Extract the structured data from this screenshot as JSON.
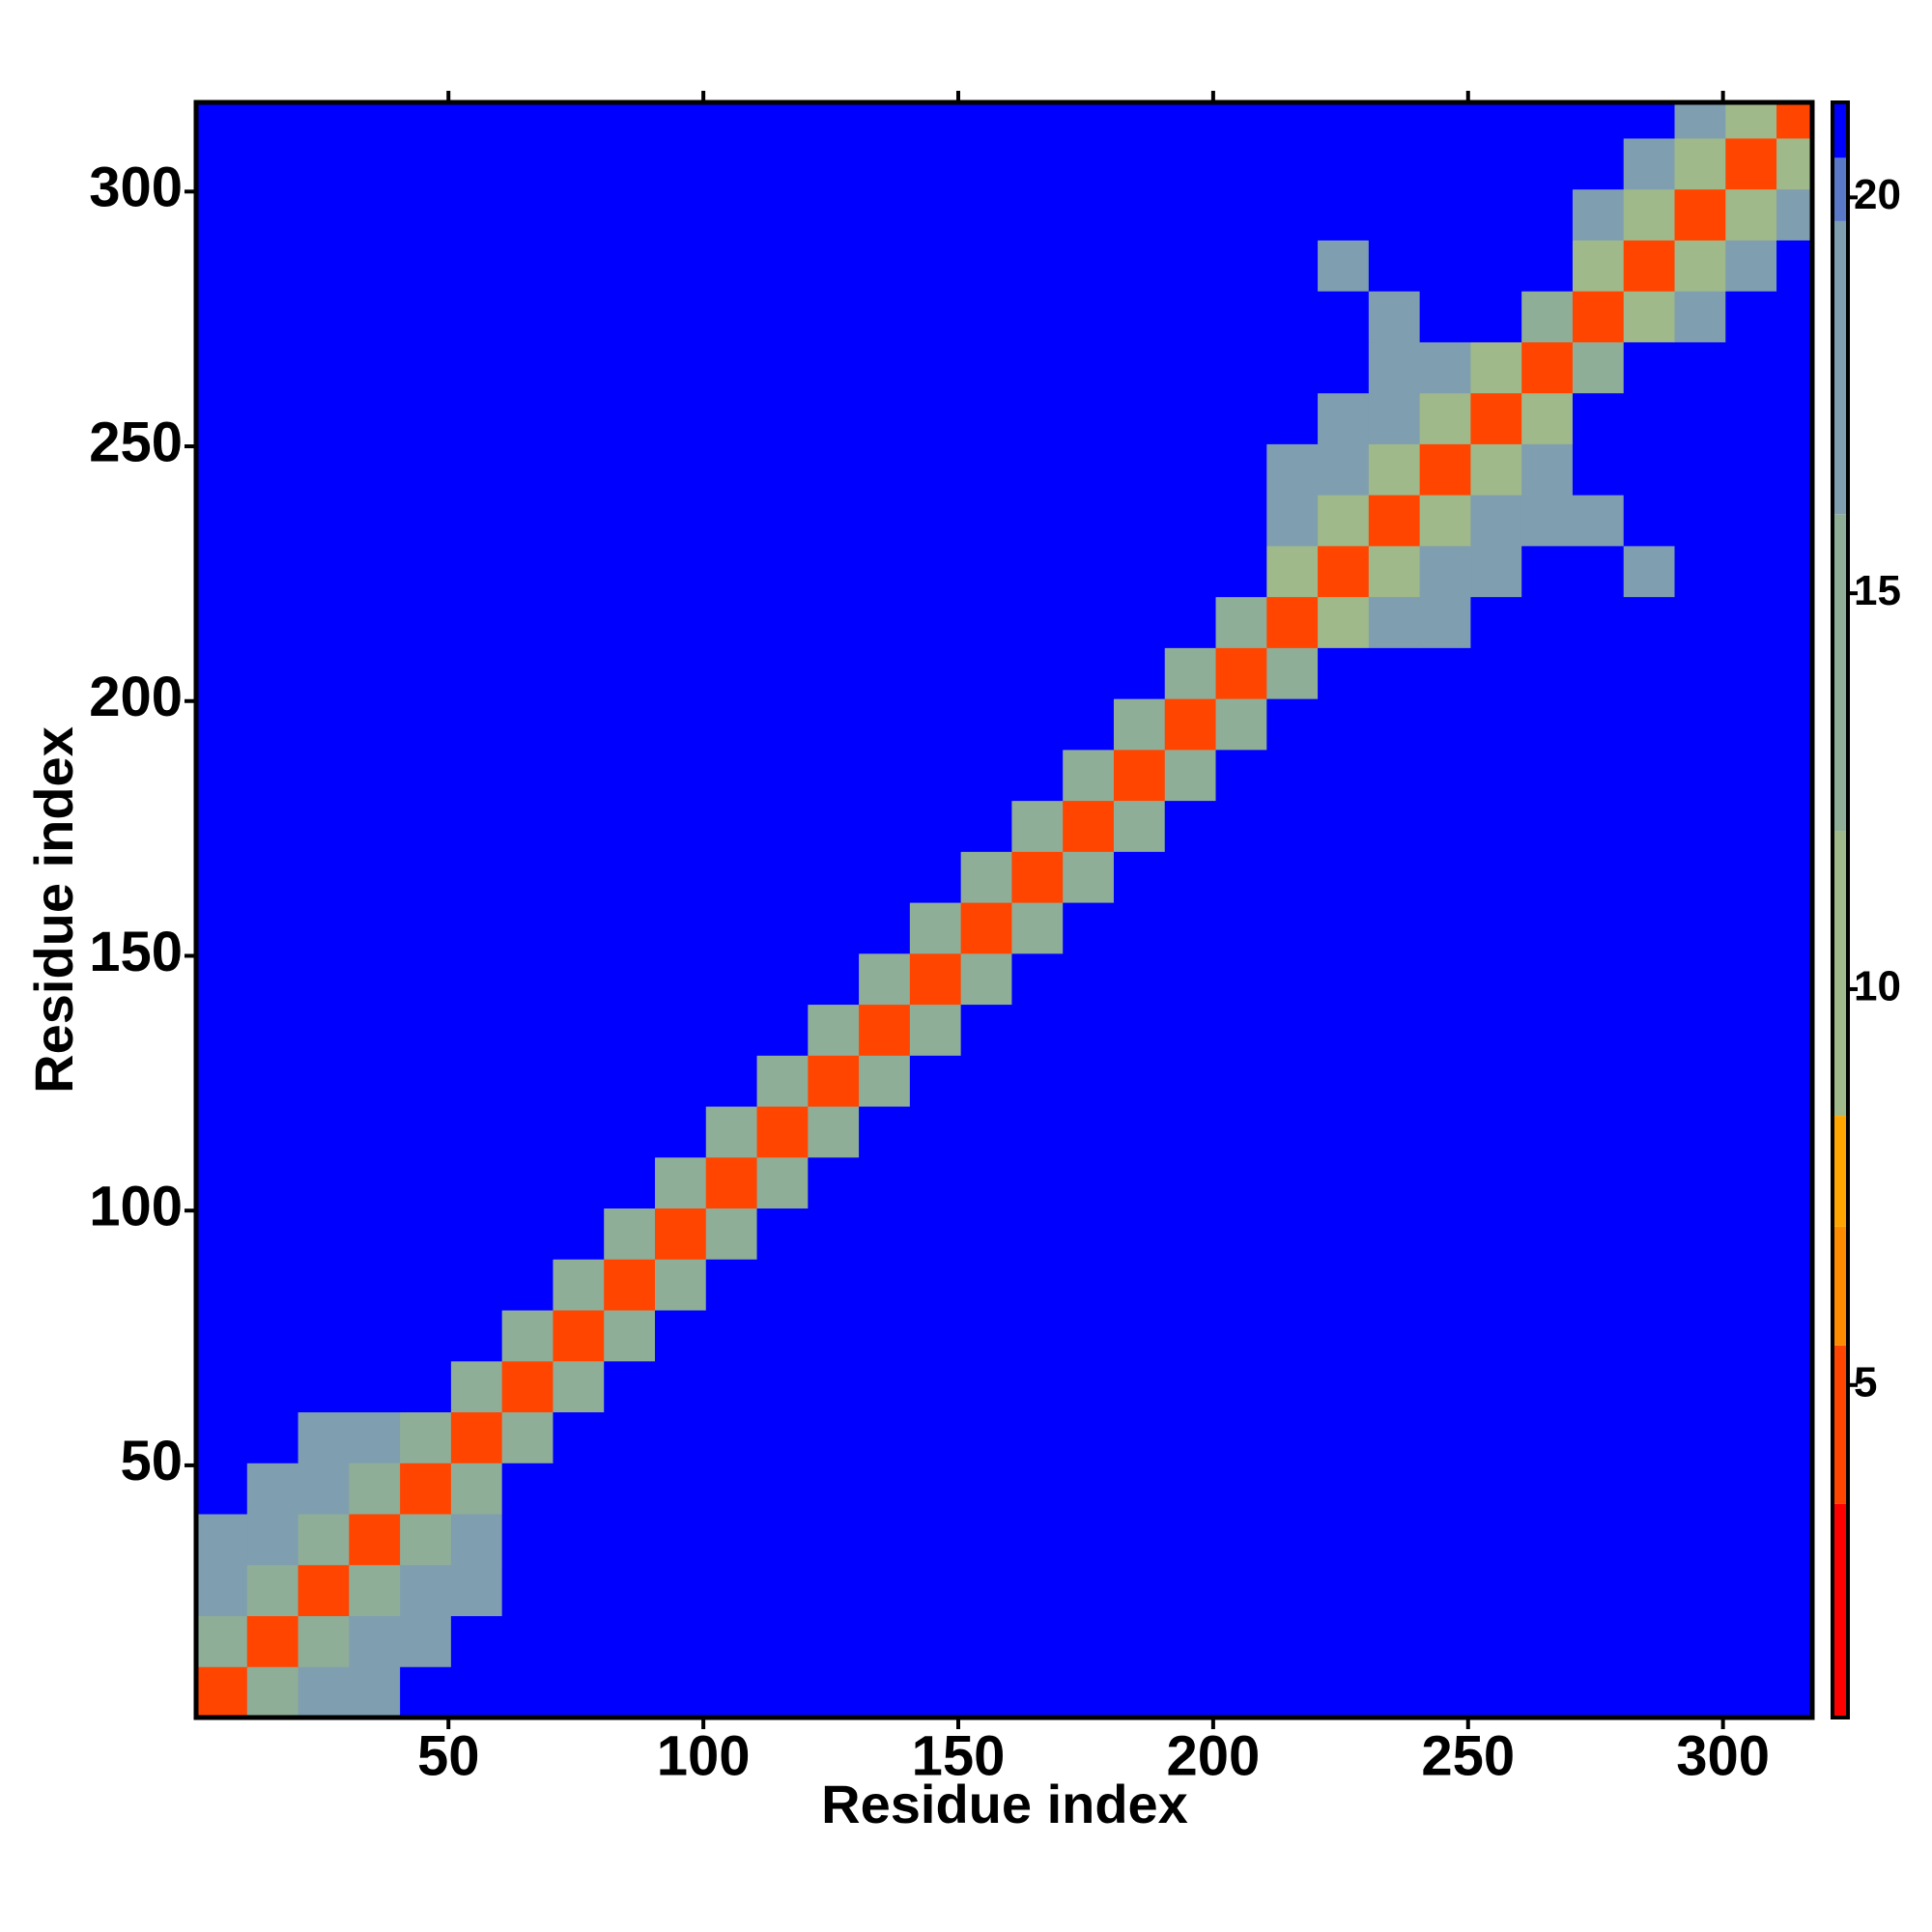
{
  "chart_data": {
    "type": "heatmap",
    "xlabel": "Residue index",
    "ylabel": "Residue index",
    "xlim": [
      0.5,
      317.5
    ],
    "ylim": [
      0.5,
      317.5
    ],
    "xticks": [
      50,
      100,
      150,
      200,
      250,
      300
    ],
    "yticks": [
      50,
      100,
      150,
      200,
      250,
      300
    ],
    "bins": [
      0.5,
      10.5,
      20.5,
      30.5,
      40.5,
      50.5,
      60.5,
      70.5,
      80.5,
      90.5,
      100.5,
      110.5,
      120.5,
      130.5,
      140.5,
      150.5,
      160.5,
      170.5,
      180.5,
      190.5,
      200.5,
      210.5,
      220.5,
      230.5,
      240.5,
      250.5,
      260.5,
      270.5,
      280.5,
      290.5,
      300.5,
      310.5,
      317.5
    ],
    "matrix": [
      [
        4,
        12,
        16,
        19,
        21,
        21,
        21,
        21,
        21,
        21,
        21,
        21,
        21,
        21,
        21,
        21,
        21,
        21,
        21,
        21,
        21,
        21,
        21,
        21,
        21,
        21,
        21,
        21,
        21,
        21,
        21,
        21
      ],
      [
        12,
        4,
        12,
        16,
        19,
        21,
        21,
        21,
        21,
        21,
        21,
        21,
        21,
        21,
        21,
        21,
        21,
        21,
        21,
        21,
        21,
        21,
        21,
        21,
        21,
        21,
        21,
        21,
        21,
        21,
        21,
        21
      ],
      [
        16,
        12,
        4,
        12,
        16,
        19,
        21,
        21,
        21,
        21,
        21,
        21,
        21,
        21,
        21,
        21,
        21,
        21,
        21,
        21,
        21,
        21,
        21,
        21,
        21,
        21,
        21,
        21,
        21,
        21,
        21,
        21
      ],
      [
        19,
        16,
        12,
        4,
        12,
        16,
        21,
        21,
        21,
        21,
        21,
        21,
        21,
        21,
        21,
        21,
        21,
        21,
        21,
        21,
        21,
        21,
        21,
        21,
        21,
        21,
        21,
        21,
        21,
        21,
        21,
        21
      ],
      [
        21,
        19,
        16,
        12,
        4,
        12,
        21,
        21,
        21,
        21,
        21,
        21,
        21,
        21,
        21,
        21,
        21,
        21,
        21,
        21,
        21,
        21,
        21,
        21,
        21,
        21,
        21,
        21,
        21,
        21,
        21,
        21
      ],
      [
        21,
        21,
        19,
        16,
        12,
        4,
        14,
        21,
        21,
        21,
        21,
        21,
        21,
        21,
        21,
        21,
        21,
        21,
        21,
        21,
        21,
        21,
        21,
        21,
        21,
        21,
        21,
        21,
        21,
        21,
        21,
        21
      ],
      [
        21,
        21,
        21,
        21,
        21,
        14,
        4,
        14,
        21,
        21,
        21,
        21,
        21,
        21,
        21,
        21,
        21,
        21,
        21,
        21,
        21,
        21,
        21,
        21,
        21,
        21,
        21,
        21,
        21,
        21,
        21,
        21
      ],
      [
        21,
        21,
        21,
        21,
        21,
        21,
        14,
        4,
        14,
        21,
        21,
        21,
        21,
        21,
        21,
        21,
        21,
        21,
        21,
        21,
        21,
        21,
        21,
        21,
        21,
        21,
        21,
        21,
        21,
        21,
        21,
        21
      ],
      [
        21,
        21,
        21,
        21,
        21,
        21,
        21,
        14,
        4,
        14,
        21,
        21,
        21,
        21,
        21,
        21,
        21,
        21,
        21,
        21,
        21,
        21,
        21,
        21,
        21,
        21,
        21,
        21,
        21,
        21,
        21,
        21
      ],
      [
        21,
        21,
        21,
        21,
        21,
        21,
        21,
        21,
        14,
        4,
        14,
        21,
        21,
        21,
        21,
        21,
        21,
        21,
        21,
        21,
        21,
        21,
        21,
        21,
        21,
        21,
        21,
        21,
        21,
        21,
        21,
        21
      ],
      [
        21,
        21,
        21,
        21,
        21,
        21,
        21,
        21,
        21,
        14,
        4,
        14,
        21,
        21,
        21,
        21,
        21,
        21,
        21,
        21,
        21,
        21,
        21,
        21,
        21,
        21,
        21,
        21,
        21,
        21,
        21,
        21
      ],
      [
        21,
        21,
        21,
        21,
        21,
        21,
        21,
        21,
        21,
        21,
        14,
        4,
        14,
        21,
        21,
        21,
        21,
        21,
        21,
        21,
        21,
        21,
        21,
        21,
        21,
        21,
        21,
        21,
        21,
        21,
        21,
        21
      ],
      [
        21,
        21,
        21,
        21,
        21,
        21,
        21,
        21,
        21,
        21,
        21,
        14,
        4,
        14,
        21,
        21,
        21,
        21,
        21,
        21,
        21,
        21,
        21,
        21,
        21,
        21,
        21,
        21,
        21,
        21,
        21,
        21
      ],
      [
        21,
        21,
        21,
        21,
        21,
        21,
        21,
        21,
        21,
        21,
        21,
        21,
        14,
        4,
        14,
        21,
        21,
        21,
        21,
        21,
        21,
        21,
        21,
        21,
        21,
        21,
        21,
        21,
        21,
        21,
        21,
        21
      ],
      [
        21,
        21,
        21,
        21,
        21,
        21,
        21,
        21,
        21,
        21,
        21,
        21,
        21,
        14,
        4,
        14,
        21,
        21,
        21,
        21,
        21,
        21,
        21,
        21,
        21,
        21,
        21,
        21,
        21,
        21,
        21,
        21
      ],
      [
        21,
        21,
        21,
        21,
        21,
        21,
        21,
        21,
        21,
        21,
        21,
        21,
        21,
        21,
        14,
        4,
        14,
        21,
        21,
        21,
        21,
        21,
        21,
        21,
        21,
        21,
        21,
        21,
        21,
        21,
        21,
        21
      ],
      [
        21,
        21,
        21,
        21,
        21,
        21,
        21,
        21,
        21,
        21,
        21,
        21,
        21,
        21,
        21,
        14,
        4,
        14,
        21,
        21,
        21,
        21,
        21,
        21,
        21,
        21,
        21,
        21,
        21,
        21,
        21,
        21
      ],
      [
        21,
        21,
        21,
        21,
        21,
        21,
        21,
        21,
        21,
        21,
        21,
        21,
        21,
        21,
        21,
        21,
        14,
        4,
        14,
        21,
        21,
        21,
        21,
        21,
        21,
        21,
        21,
        21,
        21,
        21,
        21,
        21
      ],
      [
        21,
        21,
        21,
        21,
        21,
        21,
        21,
        21,
        21,
        21,
        21,
        21,
        21,
        21,
        21,
        21,
        21,
        14,
        4,
        14,
        21,
        21,
        21,
        21,
        21,
        21,
        21,
        21,
        21,
        21,
        21,
        21
      ],
      [
        21,
        21,
        21,
        21,
        21,
        21,
        21,
        21,
        21,
        21,
        21,
        21,
        21,
        21,
        21,
        21,
        21,
        21,
        14,
        4,
        14,
        21,
        21,
        21,
        21,
        21,
        21,
        21,
        21,
        21,
        21,
        21
      ],
      [
        21,
        21,
        21,
        21,
        21,
        21,
        21,
        21,
        21,
        21,
        21,
        21,
        21,
        21,
        21,
        21,
        21,
        21,
        21,
        14,
        4,
        14,
        21,
        21,
        21,
        21,
        21,
        21,
        21,
        21,
        21,
        21
      ],
      [
        21,
        21,
        21,
        21,
        21,
        21,
        21,
        21,
        21,
        21,
        21,
        21,
        21,
        21,
        21,
        21,
        21,
        21,
        21,
        21,
        14,
        4,
        11,
        16,
        19,
        21,
        21,
        21,
        21,
        21,
        21,
        21
      ],
      [
        21,
        21,
        21,
        21,
        21,
        21,
        21,
        21,
        21,
        21,
        21,
        21,
        21,
        21,
        21,
        21,
        21,
        21,
        21,
        21,
        21,
        11,
        4,
        11,
        16,
        19,
        21,
        21,
        17,
        21,
        21,
        21
      ],
      [
        21,
        21,
        21,
        21,
        21,
        21,
        21,
        21,
        21,
        21,
        21,
        21,
        21,
        21,
        21,
        21,
        21,
        21,
        21,
        21,
        21,
        16,
        11,
        4,
        11,
        16,
        19,
        18,
        21,
        21,
        21,
        21
      ],
      [
        21,
        21,
        21,
        21,
        21,
        21,
        21,
        21,
        21,
        21,
        21,
        21,
        21,
        21,
        21,
        21,
        21,
        21,
        21,
        21,
        21,
        19,
        16,
        11,
        4,
        11,
        16,
        21,
        21,
        21,
        21,
        21
      ],
      [
        21,
        21,
        21,
        21,
        21,
        21,
        21,
        21,
        21,
        21,
        21,
        21,
        21,
        21,
        21,
        21,
        21,
        21,
        21,
        21,
        21,
        21,
        19,
        16,
        11,
        4,
        11,
        21,
        21,
        21,
        21,
        21
      ],
      [
        21,
        21,
        21,
        21,
        21,
        21,
        21,
        21,
        21,
        21,
        21,
        21,
        21,
        21,
        21,
        21,
        21,
        21,
        21,
        21,
        21,
        21,
        21,
        19,
        16,
        11,
        4,
        14,
        21,
        21,
        21,
        21
      ],
      [
        21,
        21,
        21,
        21,
        21,
        21,
        21,
        21,
        21,
        21,
        21,
        21,
        21,
        21,
        21,
        21,
        21,
        21,
        21,
        21,
        21,
        21,
        21,
        18,
        21,
        21,
        14,
        4,
        11,
        16,
        21,
        21
      ],
      [
        21,
        21,
        21,
        21,
        21,
        21,
        21,
        21,
        21,
        21,
        21,
        21,
        21,
        21,
        21,
        21,
        21,
        21,
        21,
        21,
        21,
        21,
        17,
        21,
        21,
        21,
        21,
        11,
        4,
        11,
        16,
        21
      ],
      [
        21,
        21,
        21,
        21,
        21,
        21,
        21,
        21,
        21,
        21,
        21,
        21,
        21,
        21,
        21,
        21,
        21,
        21,
        21,
        21,
        21,
        21,
        21,
        21,
        21,
        21,
        21,
        16,
        11,
        4,
        11,
        16
      ],
      [
        21,
        21,
        21,
        21,
        21,
        21,
        21,
        21,
        21,
        21,
        21,
        21,
        21,
        21,
        21,
        21,
        21,
        21,
        21,
        21,
        21,
        21,
        21,
        21,
        21,
        21,
        21,
        21,
        16,
        11,
        4,
        11
      ],
      [
        21,
        21,
        21,
        21,
        21,
        21,
        21,
        21,
        21,
        21,
        21,
        21,
        21,
        21,
        21,
        21,
        21,
        21,
        21,
        21,
        21,
        21,
        21,
        21,
        21,
        21,
        21,
        21,
        21,
        16,
        11,
        4
      ]
    ],
    "clim": [
      0.8,
      21.2
    ],
    "cticks": [
      5,
      10,
      15,
      20
    ],
    "colorscale": [
      {
        "value": 0.8,
        "color": "#ff0000"
      },
      {
        "value": 3.5,
        "color": "#ff4500"
      },
      {
        "value": 5.5,
        "color": "#ff8c00"
      },
      {
        "value": 7,
        "color": "#ffa500"
      },
      {
        "value": 8.4,
        "color": "#9fb98a"
      },
      {
        "value": 12,
        "color": "#8fae98"
      },
      {
        "value": 16,
        "color": "#7f9eb0"
      },
      {
        "value": 19.7,
        "color": "#5a78c8"
      },
      {
        "value": 20.5,
        "color": "#0000ff"
      }
    ]
  }
}
